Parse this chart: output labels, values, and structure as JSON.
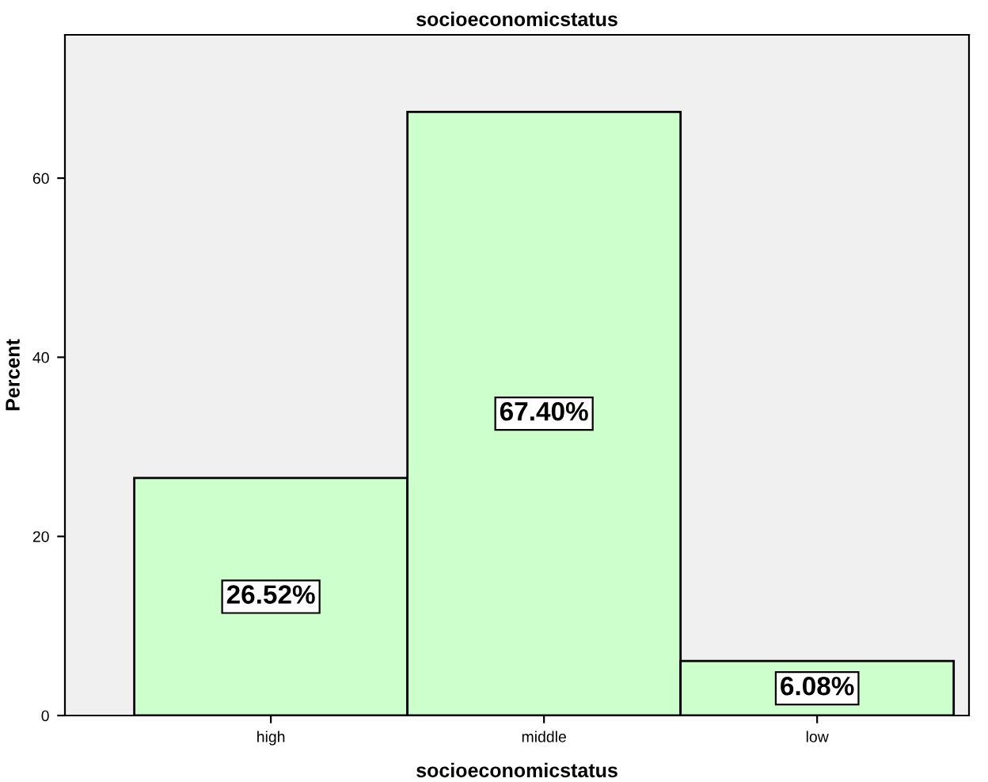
{
  "chart_data": {
    "type": "bar",
    "title": "socioeconomicstatus",
    "xlabel": "socioeconomicstatus",
    "ylabel": "Percent",
    "categories": [
      "high",
      "middle",
      "low"
    ],
    "values": [
      26.52,
      67.4,
      6.08
    ],
    "value_labels": [
      "26.52%",
      "67.40%",
      "6.08%"
    ],
    "color": "#ccffcc",
    "ylim": [
      0,
      76
    ],
    "yticks": [
      0,
      20,
      40,
      60
    ],
    "grid": false,
    "legend": false
  }
}
